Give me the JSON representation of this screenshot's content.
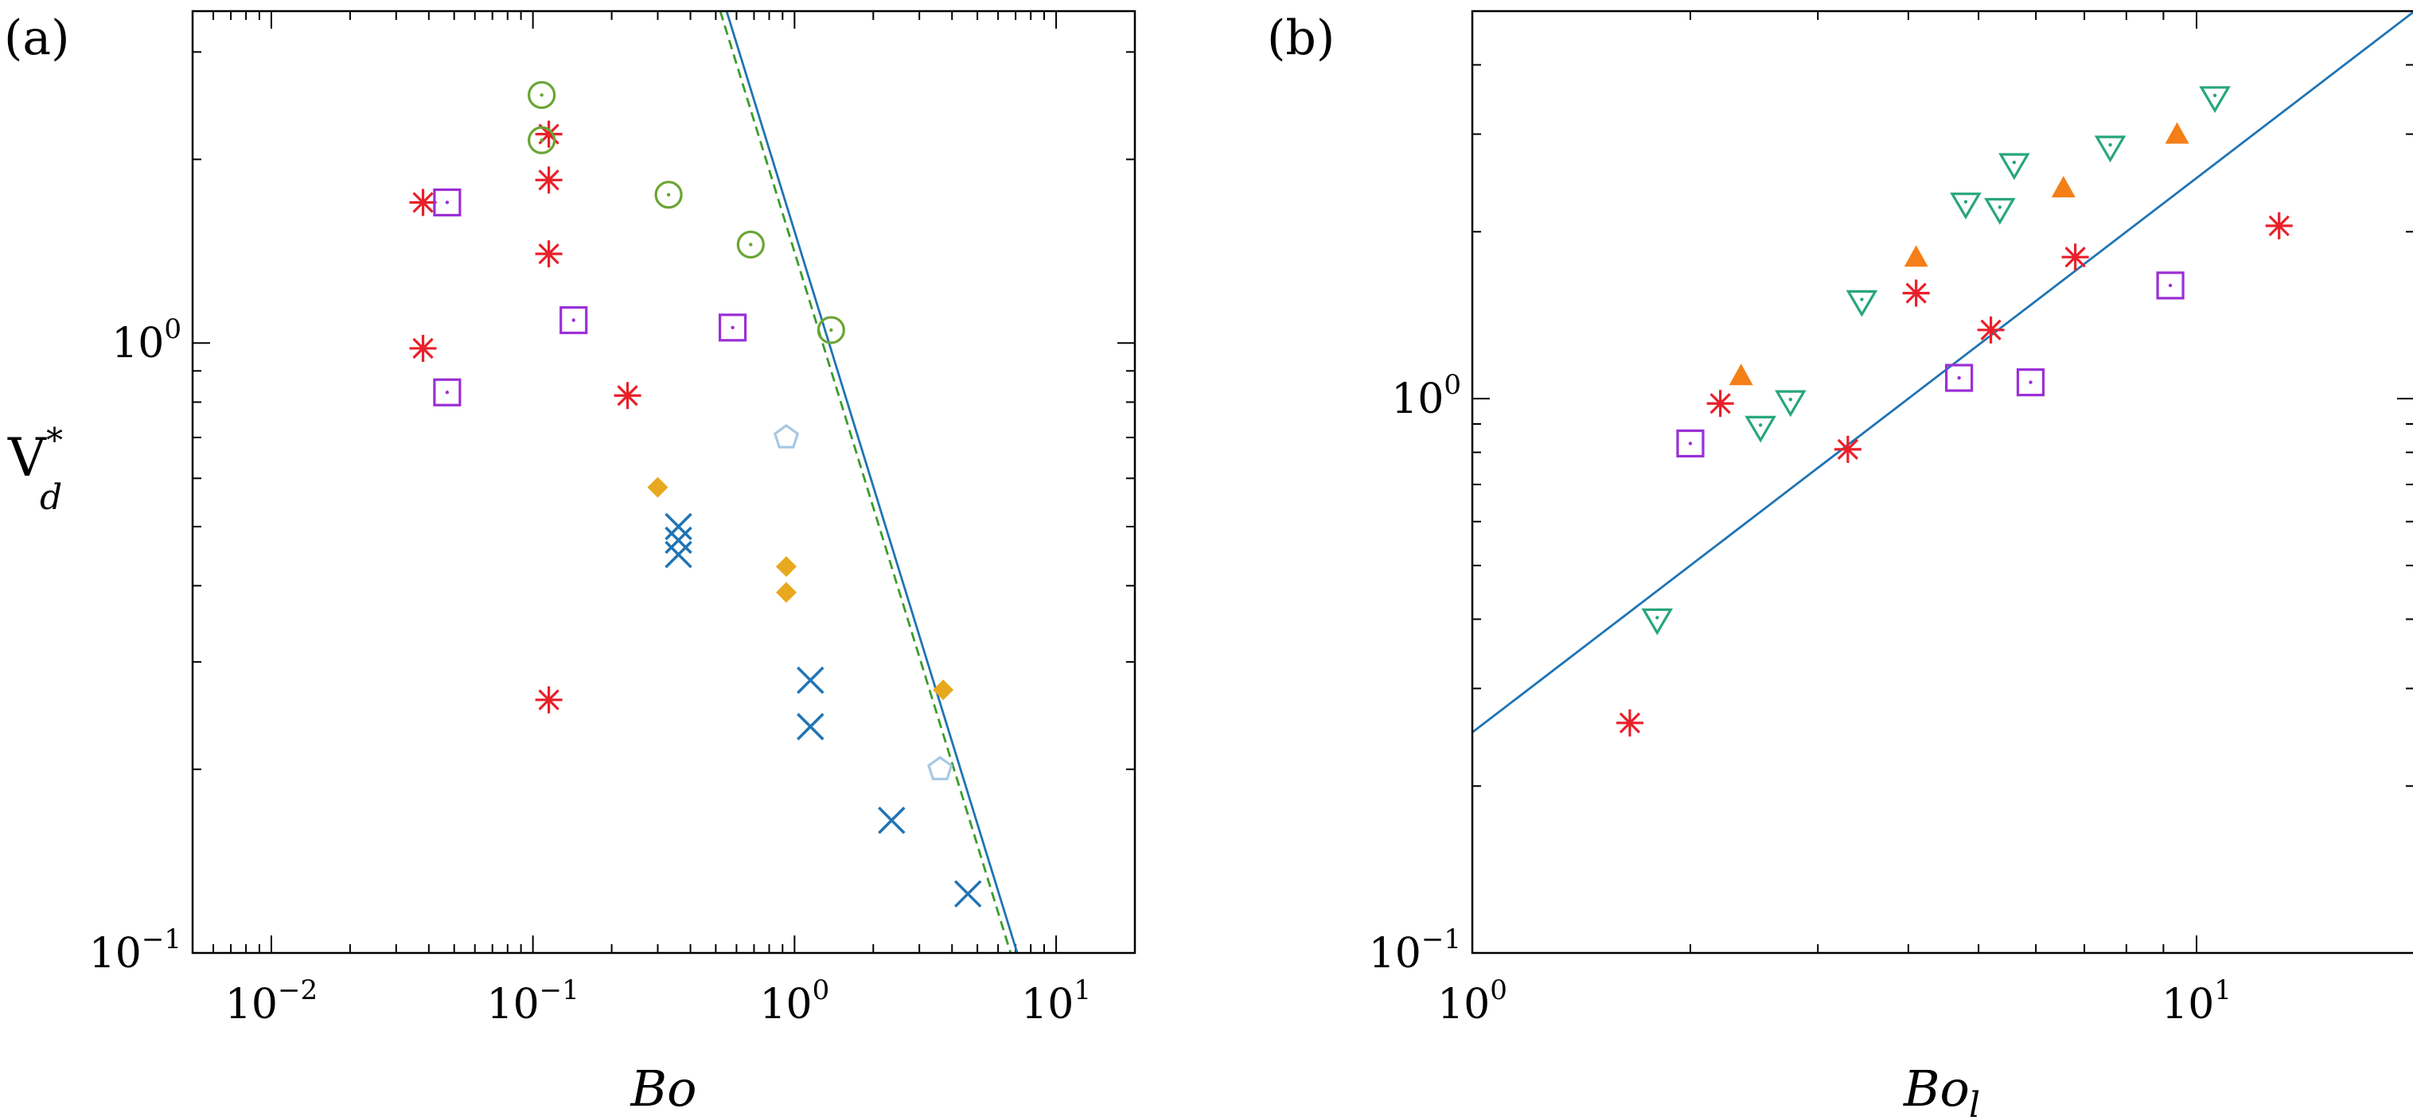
{
  "chart_data": [
    {
      "type": "scatter",
      "panel_label": "(a)",
      "xlabel": "Bo",
      "ylabel_main": "V",
      "ylabel_sup": "*",
      "ylabel_sub": "d",
      "xscale": "log",
      "yscale": "log",
      "xlim": [
        0.005,
        20
      ],
      "ylim": [
        0.1,
        3.5
      ],
      "x_ticks": [
        {
          "value": 0.01,
          "base": "10",
          "exp": "−2"
        },
        {
          "value": 0.1,
          "base": "10",
          "exp": "−1"
        },
        {
          "value": 1,
          "base": "10",
          "exp": "0"
        },
        {
          "value": 10,
          "base": "10",
          "exp": "1"
        }
      ],
      "y_ticks": [
        {
          "value": 0.1,
          "base": "10",
          "exp": "−1"
        },
        {
          "value": 1,
          "base": "10",
          "exp": "0"
        }
      ],
      "series": [
        {
          "name": "asterisk",
          "marker": "asterisk",
          "color": "#e8202a",
          "points": [
            [
              0.038,
              1.7
            ],
            [
              0.038,
              0.98
            ],
            [
              0.115,
              2.2
            ],
            [
              0.115,
              1.85
            ],
            [
              0.115,
              1.4
            ],
            [
              0.115,
              0.26
            ],
            [
              0.23,
              0.82
            ]
          ]
        },
        {
          "name": "square",
          "marker": "square",
          "color": "#9b2fd6",
          "points": [
            [
              0.047,
              1.7
            ],
            [
              0.047,
              0.83
            ],
            [
              0.143,
              1.09
            ],
            [
              0.58,
              1.06
            ]
          ]
        },
        {
          "name": "circle",
          "marker": "circle",
          "color": "#6aa533",
          "points": [
            [
              0.108,
              2.55
            ],
            [
              0.108,
              2.15
            ],
            [
              0.33,
              1.75
            ],
            [
              0.68,
              1.45
            ],
            [
              1.38,
              1.05
            ]
          ]
        },
        {
          "name": "diamond",
          "marker": "diamond",
          "color": "#e8a91e",
          "points": [
            [
              0.3,
              0.58
            ],
            [
              0.93,
              0.43
            ],
            [
              0.93,
              0.39
            ],
            [
              3.7,
              0.27
            ]
          ]
        },
        {
          "name": "cross",
          "marker": "cross",
          "color": "#2074b4",
          "points": [
            [
              0.36,
              0.5
            ],
            [
              0.36,
              0.475
            ],
            [
              0.36,
              0.45
            ],
            [
              1.15,
              0.28
            ],
            [
              1.15,
              0.235
            ],
            [
              2.35,
              0.165
            ],
            [
              4.6,
              0.125
            ]
          ]
        },
        {
          "name": "pentagon",
          "marker": "pentagon",
          "color": "#a8c8e4",
          "points": [
            [
              0.93,
              0.7
            ],
            [
              3.6,
              0.2
            ]
          ]
        }
      ],
      "lines": [
        {
          "name": "solid fit",
          "style": "solid",
          "color": "#2074b4",
          "points": [
            [
              0.55,
              3.5
            ],
            [
              7.1,
              0.1
            ]
          ]
        },
        {
          "name": "dashed fit",
          "style": "dashed",
          "color": "#3c9c2c",
          "points": [
            [
              0.52,
              3.5
            ],
            [
              6.7,
              0.1
            ]
          ]
        }
      ]
    },
    {
      "type": "scatter",
      "panel_label": "(b)",
      "xlabel": "Bo",
      "xlabel_sub": "l",
      "xscale": "log",
      "yscale": "log",
      "xlim": [
        1,
        20
      ],
      "ylim": [
        0.1,
        5
      ],
      "x_ticks": [
        {
          "value": 1,
          "base": "10",
          "exp": "0"
        },
        {
          "value": 10,
          "base": "10",
          "exp": "1"
        }
      ],
      "y_ticks": [
        {
          "value": 0.1,
          "base": "10",
          "exp": "−1"
        },
        {
          "value": 1,
          "base": "10",
          "exp": "0"
        }
      ],
      "series": [
        {
          "name": "asterisk",
          "marker": "asterisk",
          "color": "#e8202a",
          "points": [
            [
              1.65,
              0.26
            ],
            [
              2.2,
              0.98
            ],
            [
              3.3,
              0.81
            ],
            [
              4.1,
              1.55
            ],
            [
              5.2,
              1.33
            ],
            [
              6.8,
              1.8
            ],
            [
              13.0,
              2.05
            ]
          ]
        },
        {
          "name": "square",
          "marker": "square",
          "color": "#9b2fd6",
          "points": [
            [
              2.0,
              0.83
            ],
            [
              4.7,
              1.09
            ],
            [
              5.9,
              1.07
            ],
            [
              9.2,
              1.6
            ]
          ]
        },
        {
          "name": "triangle-down",
          "marker": "triangle-down",
          "color": "#27a67c",
          "points": [
            [
              1.8,
              0.4
            ],
            [
              2.5,
              0.89
            ],
            [
              2.75,
              0.99
            ],
            [
              3.45,
              1.5
            ],
            [
              4.8,
              2.25
            ],
            [
              5.35,
              2.2
            ],
            [
              5.6,
              2.65
            ],
            [
              7.6,
              2.85
            ],
            [
              10.6,
              3.5
            ]
          ]
        },
        {
          "name": "triangle-up",
          "marker": "triangle-up",
          "color": "#f57f17",
          "points": [
            [
              2.35,
              1.1
            ],
            [
              4.1,
              1.8
            ],
            [
              6.55,
              2.4
            ],
            [
              9.4,
              3.0
            ]
          ]
        }
      ],
      "lines": [
        {
          "name": "fit",
          "style": "solid",
          "color": "#2074b4",
          "points": [
            [
              1,
              0.25
            ],
            [
              20,
              5.0
            ]
          ]
        }
      ]
    }
  ]
}
